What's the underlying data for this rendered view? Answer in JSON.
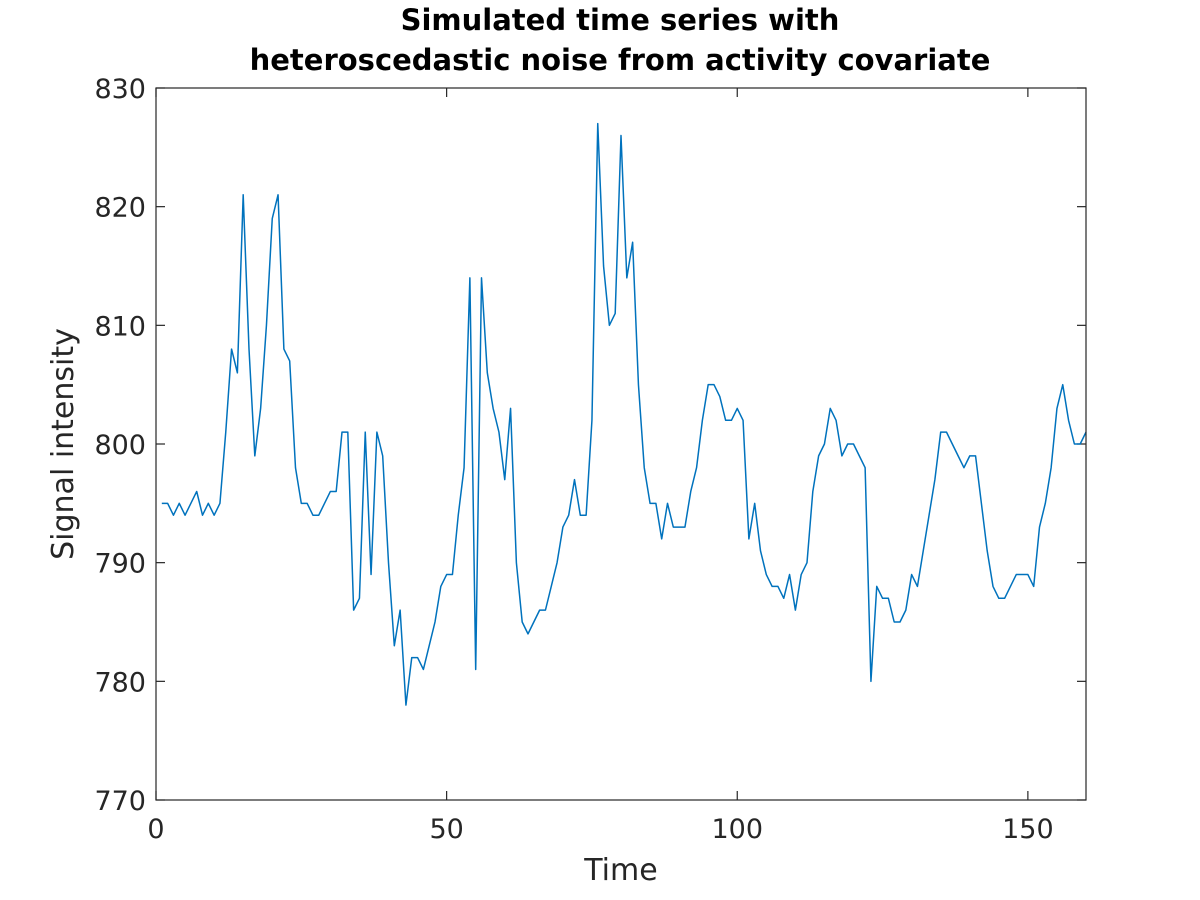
{
  "chart_data": {
    "type": "line",
    "title_line1": "Simulated time series with",
    "title_line2": "heteroscedastic noise from activity covariate",
    "xlabel": "Time",
    "ylabel": "Signal intensity",
    "xlim": [
      0,
      160
    ],
    "ylim": [
      770,
      830
    ],
    "xticks": [
      0,
      50,
      100,
      150
    ],
    "yticks": [
      770,
      780,
      790,
      800,
      810,
      820,
      830
    ],
    "grid": false,
    "line_color": "#0072BD",
    "series": [
      {
        "x": [
          1,
          2,
          3,
          4,
          5,
          6,
          7,
          8,
          9,
          10,
          11,
          12,
          13,
          14,
          15,
          16,
          17,
          18,
          19,
          20,
          21,
          22,
          23,
          24,
          25,
          26,
          27,
          28,
          29,
          30,
          31,
          32,
          33,
          34,
          35,
          36,
          37,
          38,
          39,
          40,
          41,
          42,
          43,
          44,
          45,
          46,
          47,
          48,
          49,
          50,
          51,
          52,
          53,
          54,
          55,
          56,
          57,
          58,
          59,
          60,
          61,
          62,
          63,
          64,
          65,
          66,
          67,
          68,
          69,
          70,
          71,
          72,
          73,
          74,
          75,
          76,
          77,
          78,
          79,
          80,
          81,
          82,
          83,
          84,
          85,
          86,
          87,
          88,
          89,
          90,
          91,
          92,
          93,
          94,
          95,
          96,
          97,
          98,
          99,
          100,
          101,
          102,
          103,
          104,
          105,
          106,
          107,
          108,
          109,
          110,
          111,
          112,
          113,
          114,
          115,
          116,
          117,
          118,
          119,
          120,
          121,
          122,
          123,
          124,
          125,
          126,
          127,
          128,
          129,
          130,
          131,
          132,
          133,
          134,
          135,
          136,
          137,
          138,
          139,
          140,
          141,
          142,
          143,
          144,
          145,
          146,
          147,
          148,
          149,
          150,
          151,
          152,
          153,
          154,
          155,
          156,
          157,
          158,
          159,
          160
        ],
        "values": [
          795,
          795,
          794,
          795,
          794,
          795,
          796,
          794,
          795,
          794,
          795,
          801,
          808,
          806,
          821,
          808,
          799,
          803,
          810,
          819,
          821,
          808,
          807,
          798,
          795,
          795,
          794,
          794,
          795,
          796,
          796,
          801,
          801,
          786,
          787,
          801,
          789,
          801,
          799,
          790,
          783,
          786,
          778,
          782,
          782,
          781,
          783,
          785,
          788,
          789,
          789,
          794,
          798,
          814,
          781,
          814,
          806,
          803,
          801,
          797,
          803,
          790,
          785,
          784,
          785,
          786,
          786,
          788,
          790,
          793,
          794,
          797,
          794,
          794,
          802,
          827,
          815,
          810,
          811,
          826,
          814,
          817,
          805,
          798,
          795,
          795,
          792,
          795,
          793,
          793,
          793,
          796,
          798,
          802,
          805,
          805,
          804,
          802,
          802,
          803,
          802,
          792,
          795,
          791,
          789,
          788,
          788,
          787,
          789,
          786,
          789,
          790,
          796,
          799,
          800,
          803,
          802,
          799,
          800,
          800,
          799,
          798,
          780,
          788,
          787,
          787,
          785,
          785,
          786,
          789,
          788,
          791,
          794,
          797,
          801,
          801,
          800,
          799,
          798,
          799,
          799,
          795,
          791,
          788,
          787,
          787,
          788,
          789,
          789,
          789,
          788,
          793,
          795,
          798,
          803,
          805,
          802,
          800,
          800,
          801
        ]
      }
    ]
  }
}
